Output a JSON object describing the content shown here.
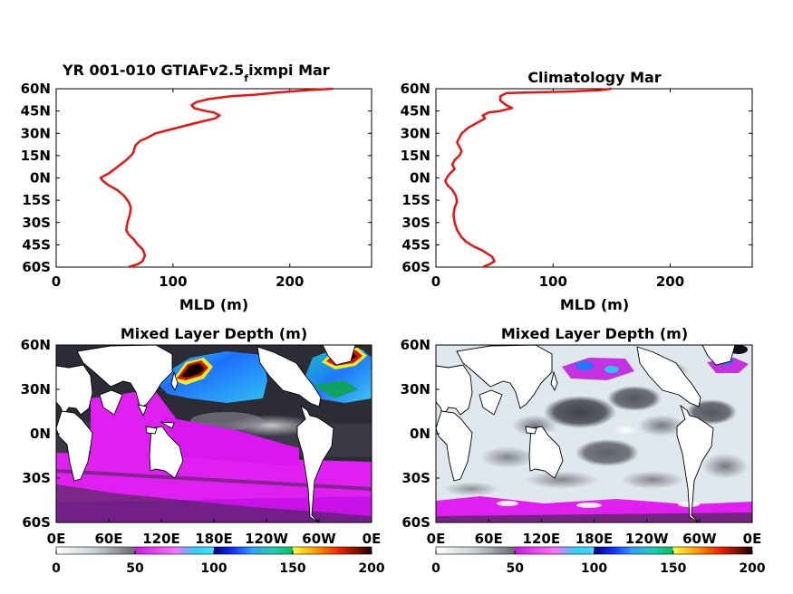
{
  "chart_data": [
    {
      "type": "line",
      "title": "YR 001-010 GTIAFv2.5",
      "title_subscript": "f",
      "title_suffix": "ixmpi Mar",
      "xlabel": "MLD (m)",
      "ylabel": "",
      "xlim": [
        0,
        270
      ],
      "ylim": [
        -60,
        60
      ],
      "xticks": [
        "0",
        "100",
        "200"
      ],
      "yticks": [
        "60N",
        "45N",
        "30N",
        "15N",
        "0N",
        "15S",
        "30S",
        "45S",
        "60S"
      ],
      "series": [
        {
          "color": "#ee1111",
          "points": [
            [
              237,
              60
            ],
            [
              215,
              59
            ],
            [
              190,
              57.5
            ],
            [
              170,
              56
            ],
            [
              150,
              55
            ],
            [
              130,
              53
            ],
            [
              120,
              51
            ],
            [
              116,
              49
            ],
            [
              118,
              47
            ],
            [
              125,
              45.5
            ],
            [
              135,
              44
            ],
            [
              140,
              42
            ],
            [
              136,
              40
            ],
            [
              125,
              38
            ],
            [
              110,
              35
            ],
            [
              95,
              32
            ],
            [
              85,
              30
            ],
            [
              78,
              27
            ],
            [
              72,
              25
            ],
            [
              68,
              22
            ],
            [
              67,
              20
            ],
            [
              66,
              17
            ],
            [
              64,
              15
            ],
            [
              60,
              12
            ],
            [
              55,
              9
            ],
            [
              50,
              6
            ],
            [
              45,
              3
            ],
            [
              40,
              1
            ],
            [
              38,
              0
            ],
            [
              40,
              -2
            ],
            [
              45,
              -5
            ],
            [
              52,
              -8
            ],
            [
              58,
              -12
            ],
            [
              62,
              -16
            ],
            [
              64,
              -20
            ],
            [
              63,
              -25
            ],
            [
              61,
              -30
            ],
            [
              60,
              -35
            ],
            [
              62,
              -38
            ],
            [
              66,
              -41
            ],
            [
              70,
              -45
            ],
            [
              74,
              -48
            ],
            [
              76,
              -52
            ],
            [
              74,
              -56
            ],
            [
              70,
              -58
            ],
            [
              62,
              -60
            ]
          ]
        }
      ]
    },
    {
      "type": "line",
      "title": "Climatology Mar",
      "xlabel": "MLD (m)",
      "ylabel": "",
      "xlim": [
        0,
        270
      ],
      "ylim": [
        -60,
        60
      ],
      "xticks": [
        "0",
        "100",
        "200"
      ],
      "yticks": [
        "60N",
        "45N",
        "30N",
        "15N",
        "0N",
        "15S",
        "30S",
        "45S",
        "60S"
      ],
      "series": [
        {
          "color": "#ee1111",
          "points": [
            [
              150,
              60
            ],
            [
              140,
              59
            ],
            [
              110,
              58
            ],
            [
              80,
              57.5
            ],
            [
              60,
              57
            ],
            [
              55,
              55
            ],
            [
              55,
              52
            ],
            [
              60,
              49
            ],
            [
              65,
              47
            ],
            [
              55,
              45
            ],
            [
              45,
              44
            ],
            [
              40,
              42
            ],
            [
              42,
              40
            ],
            [
              35,
              37
            ],
            [
              28,
              34
            ],
            [
              22,
              30
            ],
            [
              20,
              27
            ],
            [
              18,
              24
            ],
            [
              20,
              21
            ],
            [
              22,
              18
            ],
            [
              20,
              15
            ],
            [
              16,
              12
            ],
            [
              14,
              9
            ],
            [
              16,
              6
            ],
            [
              12,
              3
            ],
            [
              10,
              1
            ],
            [
              8,
              -2
            ],
            [
              10,
              -5
            ],
            [
              14,
              -8
            ],
            [
              17,
              -12
            ],
            [
              18,
              -16
            ],
            [
              16,
              -20
            ],
            [
              15,
              -25
            ],
            [
              16,
              -30
            ],
            [
              18,
              -35
            ],
            [
              22,
              -40
            ],
            [
              26,
              -43
            ],
            [
              32,
              -46
            ],
            [
              40,
              -49
            ],
            [
              48,
              -53
            ],
            [
              50,
              -56
            ],
            [
              46,
              -58
            ],
            [
              40,
              -60
            ]
          ]
        }
      ]
    },
    {
      "type": "heatmap",
      "title": "Mixed Layer Depth (m)",
      "xticks": [
        "0E",
        "60E",
        "120E",
        "180E",
        "120W",
        "60W",
        "0E"
      ],
      "yticks": [
        "60N",
        "30N",
        "0N",
        "30S",
        "60S"
      ],
      "colorbar": {
        "ticks": [
          "0",
          "50",
          "100",
          "150",
          "200"
        ],
        "range": [
          0,
          200
        ]
      },
      "colors": {
        "low": "#d9e6ea",
        "dark": "#2a2a34",
        "mid": "#e020f0",
        "blue": "#1e78ff",
        "cyan": "#20d0d8",
        "green": "#10a060",
        "red": "#dd1111",
        "yellow": "#ffd200"
      }
    },
    {
      "type": "heatmap",
      "title": "Mixed Layer Depth (m)",
      "xticks": [
        "0E",
        "60E",
        "120E",
        "180E",
        "120W",
        "60W",
        "0E"
      ],
      "yticks": [
        "60N",
        "30N",
        "0N",
        "30S",
        "60S"
      ],
      "colorbar": {
        "ticks": [
          "0",
          "50",
          "100",
          "150",
          "200"
        ],
        "range": [
          0,
          200
        ]
      }
    }
  ]
}
